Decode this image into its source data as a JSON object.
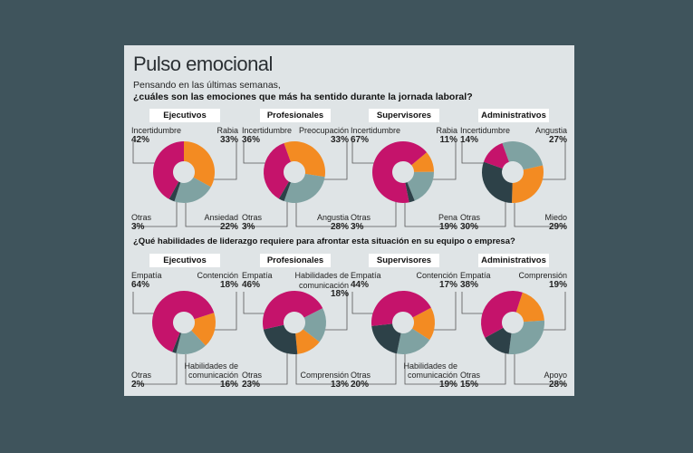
{
  "title": "Pulso emocional",
  "subtitle_line1": "Pensando en las últimas semanas,",
  "subtitle_line2": "¿cuáles son las emociones que más ha sentido durante la jornada laboral?",
  "question2": "¿Qué habilidades de liderazgo requiere para afrontar esta situación en su equipo o empresa?",
  "colors": {
    "magenta": "#c5136b",
    "orange": "#f38b22",
    "teal": "#7fa2a2",
    "dark": "#2d4148",
    "background": "#3f545c",
    "card": "#dfe4e6"
  },
  "chart_data": [
    {
      "type": "pie",
      "group": "emociones",
      "title": "Ejecutivos",
      "start_deg": 0,
      "slices": [
        {
          "label": "Rabia",
          "value": 33,
          "color": "orange",
          "corner": "top-right"
        },
        {
          "label": "Ansiedad",
          "value": 22,
          "color": "teal",
          "corner": "bottom-right"
        },
        {
          "label": "Otras",
          "value": 3,
          "color": "dark",
          "corner": "bottom-left"
        },
        {
          "label": "Incertidumbre",
          "value": 42,
          "color": "magenta",
          "corner": "top-left"
        }
      ]
    },
    {
      "type": "pie",
      "group": "emociones",
      "title": "Profesionales",
      "start_deg": -20,
      "slices": [
        {
          "label": "Preocupación",
          "value": 33,
          "color": "orange",
          "corner": "top-right"
        },
        {
          "label": "Angustia",
          "value": 28,
          "color": "teal",
          "corner": "bottom-right"
        },
        {
          "label": "Otras",
          "value": 3,
          "color": "dark",
          "corner": "bottom-left"
        },
        {
          "label": "Incertidumbre",
          "value": 36,
          "color": "magenta",
          "corner": "top-left"
        }
      ]
    },
    {
      "type": "pie",
      "group": "emociones",
      "title": "Supervisores",
      "start_deg": 50,
      "slices": [
        {
          "label": "Rabia",
          "value": 11,
          "color": "orange",
          "corner": "top-right"
        },
        {
          "label": "Pena",
          "value": 19,
          "color": "teal",
          "corner": "bottom-right"
        },
        {
          "label": "Otras",
          "value": 3,
          "color": "dark",
          "corner": "bottom-left"
        },
        {
          "label": "Incertidumbre",
          "value": 67,
          "color": "magenta",
          "corner": "top-left"
        }
      ]
    },
    {
      "type": "pie",
      "group": "emociones",
      "title": "Administrativos",
      "start_deg": -20,
      "slices": [
        {
          "label": "Angustia",
          "value": 27,
          "color": "teal",
          "corner": "top-right"
        },
        {
          "label": "Miedo",
          "value": 29,
          "color": "orange",
          "corner": "bottom-right"
        },
        {
          "label": "Otras",
          "value": 30,
          "color": "dark",
          "corner": "bottom-left"
        },
        {
          "label": "Incertidumbre",
          "value": 14,
          "color": "magenta",
          "corner": "top-left"
        }
      ]
    },
    {
      "type": "pie",
      "group": "liderazgo",
      "title": "Ejecutivos",
      "start_deg": 72,
      "slices": [
        {
          "label": "Contención",
          "value": 18,
          "color": "orange",
          "corner": "top-right"
        },
        {
          "label": "Habilidades de comunicación",
          "value": 16,
          "color": "teal",
          "corner": "bottom-right"
        },
        {
          "label": "Otras",
          "value": 2,
          "color": "dark",
          "corner": "bottom-left"
        },
        {
          "label": "Empatía",
          "value": 64,
          "color": "magenta",
          "corner": "top-left"
        }
      ]
    },
    {
      "type": "pie",
      "group": "liderazgo",
      "title": "Profesionales",
      "start_deg": 63,
      "slices": [
        {
          "label": "Habilidades de comunicación",
          "value": 18,
          "color": "teal",
          "corner": "top-right"
        },
        {
          "label": "Comprensión",
          "value": 13,
          "color": "orange",
          "corner": "bottom-right"
        },
        {
          "label": "Otras",
          "value": 23,
          "color": "dark",
          "corner": "bottom-left"
        },
        {
          "label": "Empatía",
          "value": 46,
          "color": "magenta",
          "corner": "top-left"
        }
      ]
    },
    {
      "type": "pie",
      "group": "liderazgo",
      "title": "Supervisores",
      "start_deg": 62,
      "slices": [
        {
          "label": "Contención",
          "value": 17,
          "color": "orange",
          "corner": "top-right"
        },
        {
          "label": "Habilidades de comunicación",
          "value": 19,
          "color": "teal",
          "corner": "bottom-right"
        },
        {
          "label": "Otras",
          "value": 20,
          "color": "dark",
          "corner": "bottom-left"
        },
        {
          "label": "Empatía",
          "value": 44,
          "color": "magenta",
          "corner": "top-left"
        }
      ]
    },
    {
      "type": "pie",
      "group": "liderazgo",
      "title": "Administrativos",
      "start_deg": 18,
      "slices": [
        {
          "label": "Comprensión",
          "value": 19,
          "color": "orange",
          "corner": "top-right"
        },
        {
          "label": "Apoyo",
          "value": 28,
          "color": "teal",
          "corner": "bottom-right"
        },
        {
          "label": "Otras",
          "value": 15,
          "color": "dark",
          "corner": "bottom-left"
        },
        {
          "label": "Empatía",
          "value": 38,
          "color": "magenta",
          "corner": "top-left"
        }
      ]
    }
  ]
}
